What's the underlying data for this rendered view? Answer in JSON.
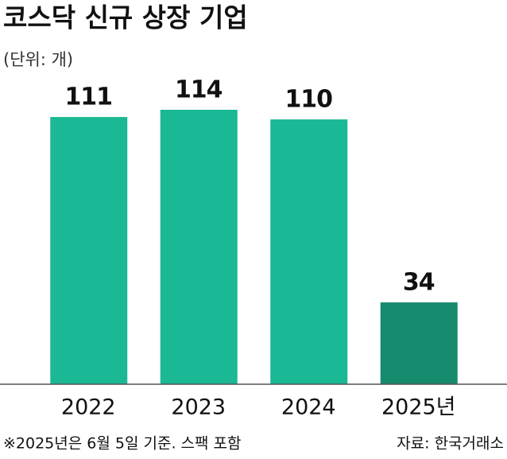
{
  "chart_data": {
    "type": "bar",
    "title": "코스닥 신규 상장 기업",
    "subtitle": "(단위: 개)",
    "categories": [
      "2022",
      "2023",
      "2024",
      "2025년"
    ],
    "values": [
      111,
      114,
      110,
      34
    ],
    "colors": [
      "#1ab894",
      "#1ab894",
      "#1ab894",
      "#168a6d"
    ],
    "footnote": "※2025년은 6월 5일 기준. 스팩 포함",
    "source": "자료: 한국거래소"
  }
}
